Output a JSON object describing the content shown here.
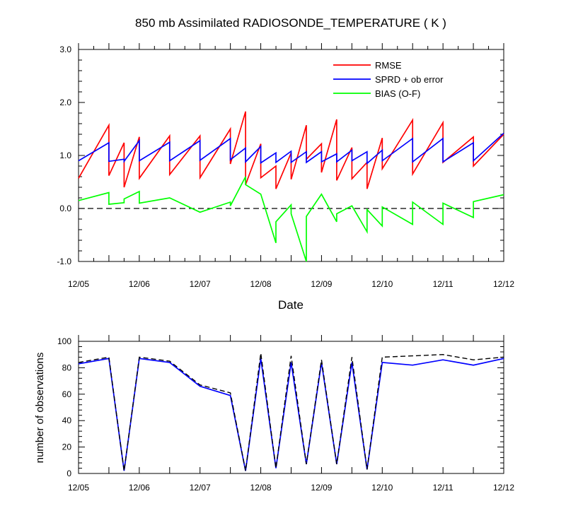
{
  "chart_data": [
    {
      "type": "line",
      "title": "850 mb Assimilated RADIOSONDE_TEMPERATURE ( K )",
      "xlabel": "Date",
      "ylabel": "",
      "x_tick_labels": [
        "12/05",
        "12/06",
        "12/07",
        "12/08",
        "12/09",
        "12/10",
        "12/11",
        "12/12"
      ],
      "y_tick_labels": [
        "-1.0",
        "0.0",
        "1.0",
        "2.0",
        "3.0"
      ],
      "xlim": [
        0,
        7
      ],
      "ylim": [
        -1,
        3
      ],
      "legend_position": "top-right",
      "reference_line": {
        "y": 0,
        "style": "dashed",
        "color": "#000000"
      },
      "series": [
        {
          "name": "RMSE",
          "color": "#ff0000",
          "points": [
            [
              0,
              0.57
            ],
            [
              0.5,
              1.57
            ],
            [
              0.5,
              0.62
            ],
            [
              0.75,
              1.24
            ],
            [
              0.75,
              0.4
            ],
            [
              1,
              1.35
            ],
            [
              1,
              0.57
            ],
            [
              1.5,
              1.37
            ],
            [
              1.5,
              0.64
            ],
            [
              2,
              1.37
            ],
            [
              2,
              0.58
            ],
            [
              2.5,
              1.5
            ],
            [
              2.5,
              0.84
            ],
            [
              2.75,
              1.83
            ],
            [
              2.75,
              0.45
            ],
            [
              3,
              1.22
            ],
            [
              3,
              0.58
            ],
            [
              3.25,
              0.8
            ],
            [
              3.25,
              0.37
            ],
            [
              3.5,
              1.05
            ],
            [
              3.5,
              0.55
            ],
            [
              3.75,
              1.57
            ],
            [
              3.75,
              0.93
            ],
            [
              4,
              1.22
            ],
            [
              4,
              0.68
            ],
            [
              4.25,
              1.68
            ],
            [
              4.25,
              0.53
            ],
            [
              4.5,
              1.15
            ],
            [
              4.5,
              0.56
            ],
            [
              4.75,
              0.87
            ],
            [
              4.75,
              0.37
            ],
            [
              5,
              1.33
            ],
            [
              5,
              0.75
            ],
            [
              5.5,
              1.67
            ],
            [
              5.5,
              0.65
            ],
            [
              6,
              1.62
            ],
            [
              6,
              0.87
            ],
            [
              6.5,
              1.35
            ],
            [
              6.5,
              0.8
            ],
            [
              7,
              1.4
            ]
          ]
        },
        {
          "name": "SPRD + ob error",
          "color": "#0000ff",
          "points": [
            [
              0,
              0.9
            ],
            [
              0.5,
              1.24
            ],
            [
              0.5,
              0.89
            ],
            [
              0.75,
              0.93
            ],
            [
              0.75,
              0.89
            ],
            [
              1,
              1.28
            ],
            [
              1,
              0.9
            ],
            [
              1.5,
              1.25
            ],
            [
              1.5,
              0.9
            ],
            [
              2,
              1.28
            ],
            [
              2,
              0.91
            ],
            [
              2.5,
              1.32
            ],
            [
              2.5,
              0.92
            ],
            [
              2.75,
              1.14
            ],
            [
              2.75,
              0.88
            ],
            [
              3,
              1.17
            ],
            [
              3,
              0.86
            ],
            [
              3.25,
              1.05
            ],
            [
              3.25,
              0.87
            ],
            [
              3.5,
              1.08
            ],
            [
              3.5,
              0.87
            ],
            [
              3.75,
              1.07
            ],
            [
              3.75,
              0.87
            ],
            [
              4,
              1.07
            ],
            [
              4,
              0.88
            ],
            [
              4.25,
              1.03
            ],
            [
              4.25,
              0.88
            ],
            [
              4.5,
              1.1
            ],
            [
              4.5,
              0.9
            ],
            [
              4.75,
              1.07
            ],
            [
              4.75,
              0.85
            ],
            [
              5,
              1.1
            ],
            [
              5,
              0.9
            ],
            [
              5.5,
              1.32
            ],
            [
              5.5,
              0.88
            ],
            [
              6,
              1.32
            ],
            [
              6,
              0.88
            ],
            [
              6.5,
              1.24
            ],
            [
              6.5,
              0.9
            ],
            [
              7,
              1.42
            ]
          ]
        },
        {
          "name": "BIAS (O-F)",
          "color": "#00ff00",
          "points": [
            [
              0,
              0.15
            ],
            [
              0.5,
              0.3
            ],
            [
              0.5,
              0.08
            ],
            [
              0.75,
              0.11
            ],
            [
              0.75,
              0.18
            ],
            [
              1,
              0.32
            ],
            [
              1,
              0.1
            ],
            [
              1.5,
              0.2
            ],
            [
              2,
              -0.07
            ],
            [
              2.5,
              0.12
            ],
            [
              2.5,
              0.05
            ],
            [
              2.75,
              0.6
            ],
            [
              2.75,
              0.45
            ],
            [
              3,
              0.27
            ],
            [
              3.25,
              -0.65
            ],
            [
              3.25,
              -0.25
            ],
            [
              3.5,
              0.07
            ],
            [
              3.5,
              -0.1
            ],
            [
              3.75,
              -1.0
            ],
            [
              3.75,
              -0.15
            ],
            [
              4,
              0.27
            ],
            [
              4.25,
              -0.25
            ],
            [
              4.25,
              -0.1
            ],
            [
              4.5,
              0.05
            ],
            [
              4.75,
              -0.44
            ],
            [
              4.75,
              -0.02
            ],
            [
              5,
              -0.33
            ],
            [
              5,
              0.03
            ],
            [
              5.5,
              -0.3
            ],
            [
              5.5,
              0.12
            ],
            [
              6,
              -0.3
            ],
            [
              6,
              0.1
            ],
            [
              6.5,
              -0.17
            ],
            [
              6.5,
              0.13
            ],
            [
              7,
              0.26
            ]
          ]
        }
      ]
    },
    {
      "type": "line",
      "title": "",
      "xlabel": "",
      "ylabel": "number of observations",
      "x_tick_labels": [
        "12/05",
        "12/06",
        "12/07",
        "12/08",
        "12/09",
        "12/10",
        "12/11",
        "12/12"
      ],
      "y_tick_labels": [
        "0",
        "20",
        "40",
        "60",
        "80",
        "100"
      ],
      "xlim": [
        0,
        7
      ],
      "ylim": [
        0,
        100
      ],
      "series": [
        {
          "color": "#0000ff",
          "style": "solid",
          "points": [
            [
              0,
              83
            ],
            [
              0.5,
              87
            ],
            [
              0.75,
              2
            ],
            [
              1,
              87
            ],
            [
              1.5,
              84
            ],
            [
              2,
              66
            ],
            [
              2.5,
              59
            ],
            [
              2.75,
              2
            ],
            [
              3,
              87
            ],
            [
              3.25,
              4
            ],
            [
              3.5,
              84
            ],
            [
              3.75,
              7
            ],
            [
              4,
              84
            ],
            [
              4.25,
              7
            ],
            [
              4.5,
              84
            ],
            [
              4.75,
              3
            ],
            [
              5,
              84
            ],
            [
              5.5,
              82
            ],
            [
              6,
              86
            ],
            [
              6.5,
              82
            ],
            [
              7,
              87
            ]
          ]
        },
        {
          "color": "#000000",
          "style": "dashed",
          "points": [
            [
              0,
              84
            ],
            [
              0.5,
              88
            ],
            [
              0.75,
              2
            ],
            [
              1,
              88
            ],
            [
              1.5,
              85
            ],
            [
              2,
              67
            ],
            [
              2.5,
              61
            ],
            [
              2.75,
              2
            ],
            [
              3,
              91
            ],
            [
              3.25,
              4
            ],
            [
              3.5,
              89
            ],
            [
              3.75,
              7
            ],
            [
              4,
              86
            ],
            [
              4.25,
              7
            ],
            [
              4.5,
              88
            ],
            [
              4.75,
              3
            ],
            [
              5,
              88
            ],
            [
              5.5,
              89
            ],
            [
              6,
              90
            ],
            [
              6.5,
              86
            ],
            [
              7,
              88
            ]
          ]
        }
      ]
    }
  ]
}
